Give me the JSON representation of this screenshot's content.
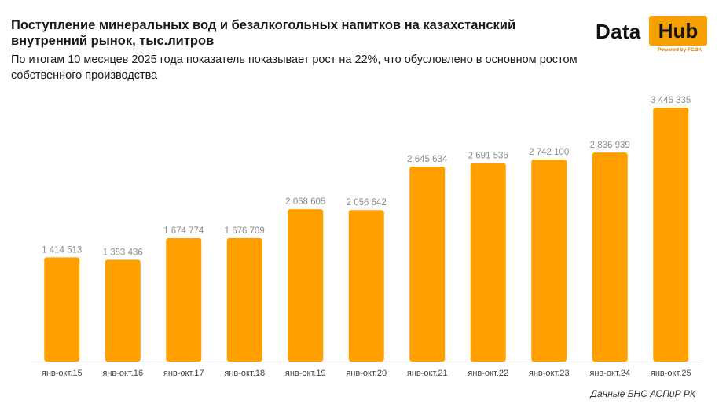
{
  "header": {
    "title": "Поступление минеральных вод и безалкогольных напитков на казахстанский внутренний рынок, тыс.литров",
    "subtitle": "По итогам 10 месяцев 2025 года показатель показывает рост на 22%, что обусловлено в основном ростом собственного производства"
  },
  "logo": {
    "word1": "Data",
    "word2": "Hub",
    "powered": "Powered by FCBK"
  },
  "source": "Данные БНС АСПиР РК",
  "colors": {
    "bar": "#FF9F00",
    "label": "#8c8c8c",
    "axis": "#bdbdbd"
  },
  "chart_data": {
    "type": "bar",
    "categories": [
      "янв-окт.15",
      "янв-окт.16",
      "янв-окт.17",
      "янв-окт.18",
      "янв-окт.19",
      "янв-окт.20",
      "янв-окт.21",
      "янв-окт.22",
      "янв-окт.23",
      "янв-окт.24",
      "янв-окт.25"
    ],
    "values": [
      1414513,
      1383436,
      1674774,
      1676709,
      2068605,
      2056642,
      2645634,
      2691536,
      2742100,
      2836939,
      3446335
    ],
    "data_labels": [
      "1 414 513",
      "1 383 436",
      "1 674 774",
      "1 676 709",
      "2 068 605",
      "2 056 642",
      "2 645 634",
      "2 691 536",
      "2 742 100",
      "2 836 939",
      "3 446 335"
    ],
    "ylim": [
      0,
      3446335
    ],
    "grid": false,
    "legend": "none"
  }
}
